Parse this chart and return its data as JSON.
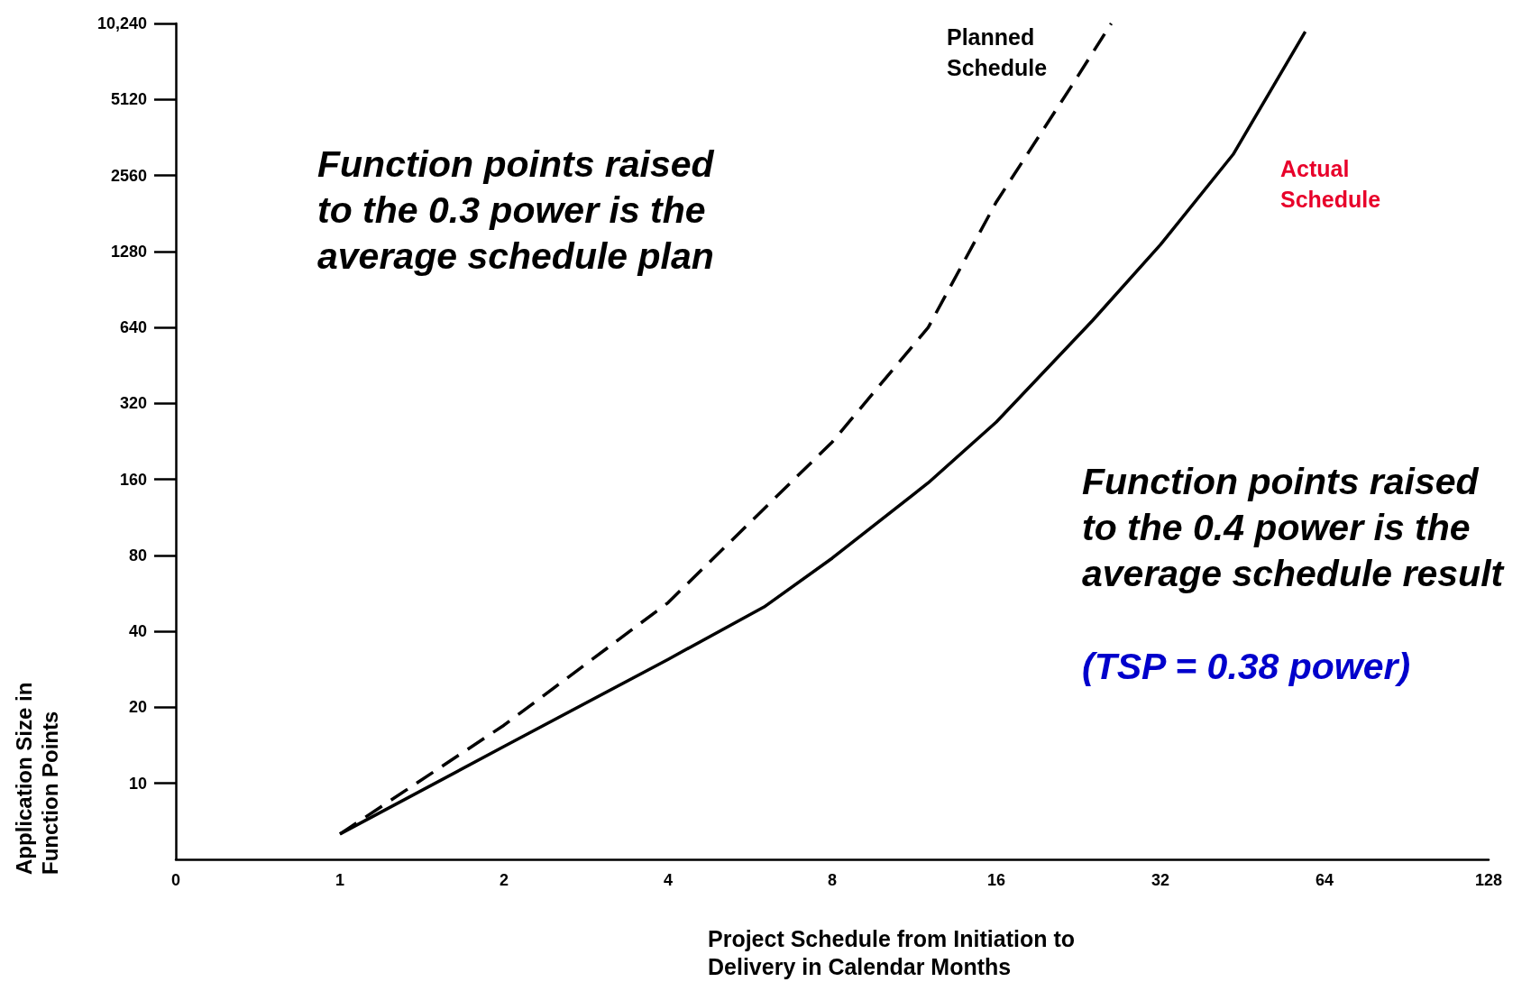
{
  "chart_data": {
    "type": "line",
    "xlabel": "Project Schedule from Initiation to Delivery in Calendar Months",
    "ylabel": "Application Size in Function Points",
    "log": "xy",
    "grid": false,
    "marker": "none",
    "xlim": [
      0.5,
      128
    ],
    "xticks": [
      {
        "value": 0.5,
        "label": "0"
      },
      1,
      2,
      4,
      8,
      16,
      32,
      64,
      128
    ],
    "ylim": [
      5,
      10240
    ],
    "yticks": [
      10,
      20,
      40,
      80,
      160,
      320,
      640,
      1280,
      2560,
      5120,
      {
        "value": 10240,
        "label": "10,240"
      }
    ],
    "series": [
      {
        "color": "#000000",
        "line_style": "dashed",
        "x": [
          1,
          2,
          4,
          8,
          12,
          16,
          22,
          26
        ],
        "values": [
          6.3,
          17,
          52,
          225,
          640,
          2010,
          5800,
          10240
        ]
      },
      {
        "color": "#000000",
        "line_style": "solid",
        "x": [
          1,
          2,
          4,
          6,
          8,
          12,
          16,
          24,
          32,
          43.5,
          59
        ],
        "values": [
          6.3,
          14,
          31,
          50,
          78,
          155,
          270,
          680,
          1360,
          3100,
          9500
        ]
      }
    ],
    "annotations": [
      "Planned Schedule",
      "Actual Schedule",
      "Function points raised to the 0.3 power is the average schedule plan",
      "Function points raised to the 0.4 power is the average schedule result",
      "(TSP = 0.38 power)"
    ]
  }
}
